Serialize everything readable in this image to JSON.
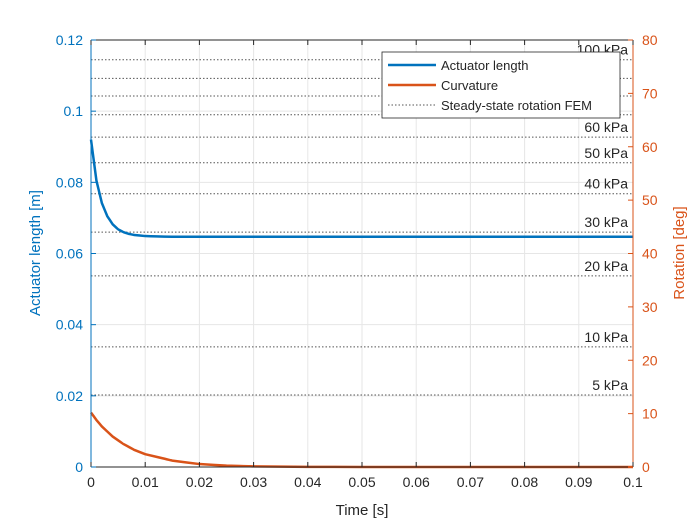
{
  "chart_data": {
    "type": "line",
    "title": "",
    "xlabel": "Time [s]",
    "ylabel_left": "Actuator length [m]",
    "ylabel_right": "Rotation [deg]",
    "xlim": [
      0,
      0.1
    ],
    "ylim_left": [
      0,
      0.12
    ],
    "ylim_right": [
      0,
      80
    ],
    "x_ticks": [
      "0",
      "0.01",
      "0.02",
      "0.03",
      "0.04",
      "0.05",
      "0.06",
      "0.07",
      "0.08",
      "0.09",
      "0.1"
    ],
    "y_left_ticks": [
      "0",
      "0.02",
      "0.04",
      "0.06",
      "0.08",
      "0.1",
      "0.12"
    ],
    "y_right_ticks": [
      "0",
      "10",
      "20",
      "30",
      "40",
      "50",
      "60",
      "70",
      "80"
    ],
    "grid": true,
    "legend_position": "top-right",
    "colors": {
      "left_axis": "#0072BD",
      "right_axis": "#D95319",
      "length_series": "#0072BD",
      "curvature_series": "#D95319",
      "fem_lines": "#555555",
      "grid": "#e6e6e6",
      "text": "#262626"
    },
    "series": [
      {
        "name": "Actuator length",
        "axis": "left",
        "x": [
          0,
          0.001,
          0.002,
          0.003,
          0.004,
          0.005,
          0.006,
          0.007,
          0.008,
          0.01,
          0.012,
          0.015,
          0.02,
          0.03,
          0.05,
          0.1
        ],
        "values": [
          0.092,
          0.0805,
          0.0742,
          0.0705,
          0.0682,
          0.0668,
          0.066,
          0.0655,
          0.0652,
          0.0649,
          0.0648,
          0.0647,
          0.0647,
          0.0647,
          0.0647,
          0.0647
        ]
      },
      {
        "name": "Curvature",
        "axis": "right",
        "x": [
          0,
          0.001,
          0.002,
          0.004,
          0.006,
          0.008,
          0.01,
          0.015,
          0.02,
          0.025,
          0.03,
          0.04,
          0.05,
          0.1
        ],
        "values": [
          10.2,
          8.8,
          7.6,
          5.7,
          4.3,
          3.2,
          2.4,
          1.2,
          0.55,
          0.25,
          0.12,
          0.03,
          0,
          0
        ]
      }
    ],
    "fem_reference": {
      "name": "Steady-state rotation FEM",
      "axis": "right",
      "lines": [
        {
          "label": "5 kPa",
          "value": 13.5
        },
        {
          "label": "10 kPa",
          "value": 22.5
        },
        {
          "label": "20 kPa",
          "value": 35.8
        },
        {
          "label": "30 kPa",
          "value": 44.0
        },
        {
          "label": "40 kPa",
          "value": 51.2
        },
        {
          "label": "50 kPa",
          "value": 57.0
        },
        {
          "label": "60 kPa",
          "value": 61.8
        },
        {
          "label": "",
          "value": 66.0
        },
        {
          "label": "",
          "value": 69.5
        },
        {
          "label": "",
          "value": 72.8
        },
        {
          "label": "100 kPa",
          "value": 76.3
        }
      ]
    }
  }
}
